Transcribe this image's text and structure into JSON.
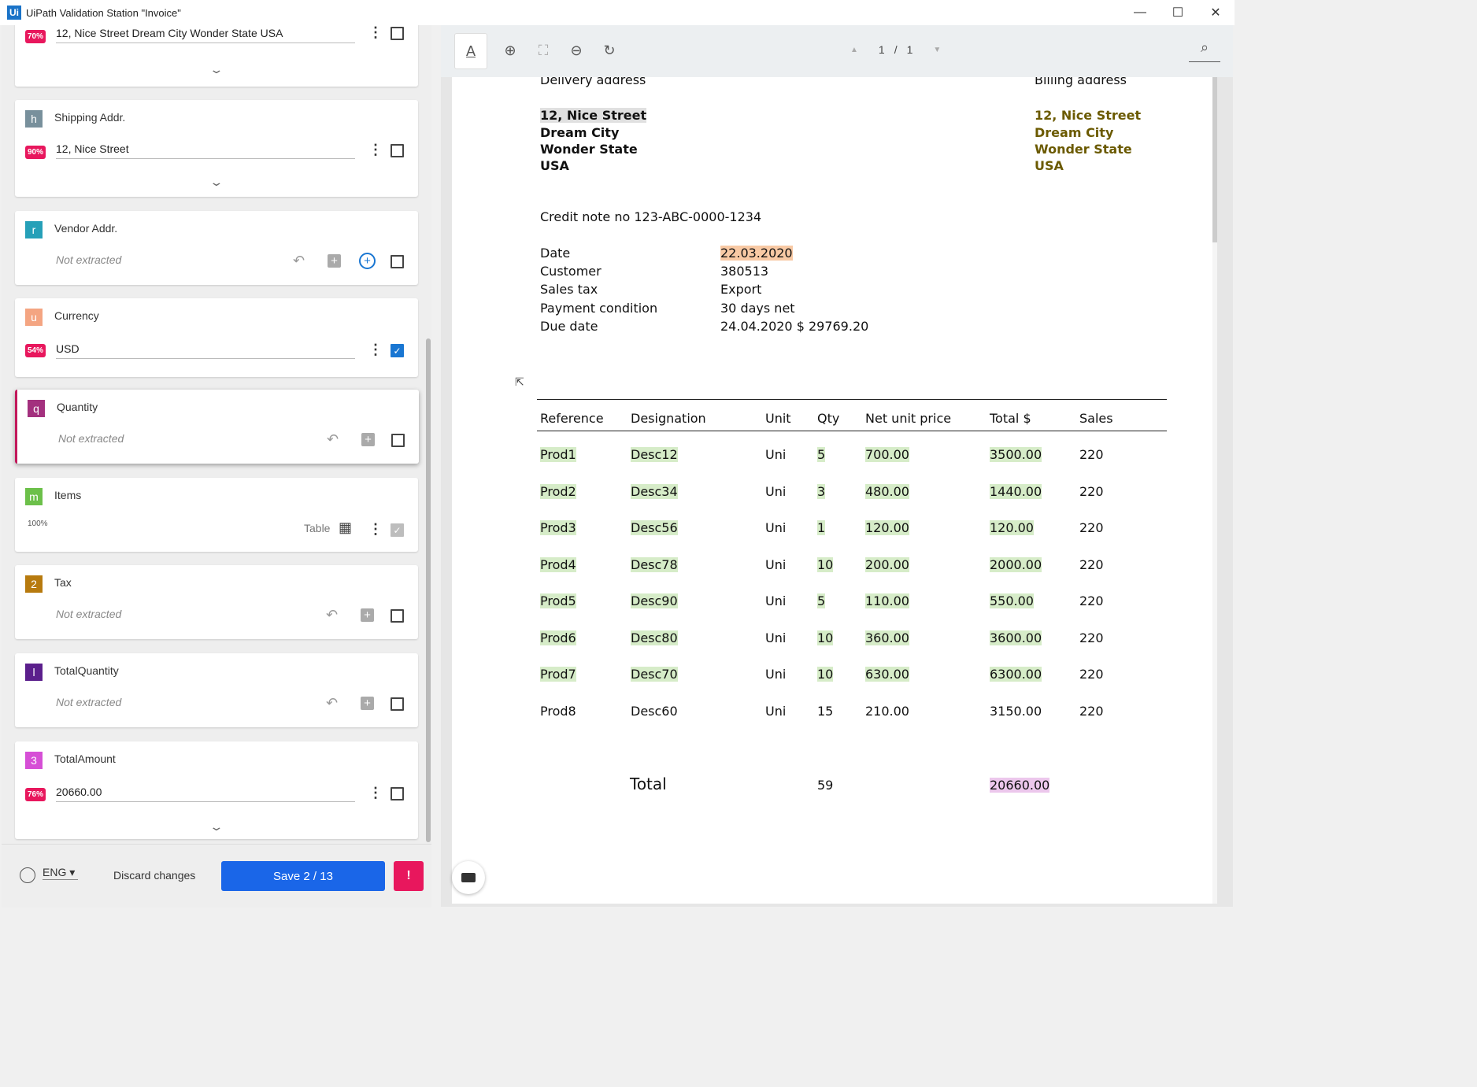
{
  "window": {
    "title": "UiPath Validation Station \"Invoice\"",
    "logo": "Ui",
    "minimize_glyph": "—",
    "maximize_glyph": "☐",
    "close_glyph": "✕"
  },
  "fields": {
    "billing_partial": {
      "confidence": "70%",
      "value": "12, Nice Street Dream City Wonder State USA"
    },
    "shipping": {
      "letter": "h",
      "name": "Shipping Addr.",
      "confidence": "90%",
      "value": "12, Nice Street",
      "color": "#78909c"
    },
    "vendor": {
      "letter": "r",
      "name": "Vendor Addr.",
      "status": "Not extracted",
      "color": "#26a0b8"
    },
    "currency": {
      "letter": "u",
      "name": "Currency",
      "confidence": "54%",
      "value": "USD",
      "color": "#f4a582"
    },
    "quantity": {
      "letter": "q",
      "name": "Quantity",
      "status": "Not extracted",
      "color": "#a3307e"
    },
    "items": {
      "letter": "m",
      "name": "Items",
      "confidence": "100%",
      "type_label": "Table",
      "color": "#6cc04a"
    },
    "tax": {
      "letter": "2",
      "name": "Tax",
      "status": "Not extracted",
      "color": "#b77a0e"
    },
    "total_quantity": {
      "letter": "l",
      "name": "TotalQuantity",
      "status": "Not extracted",
      "color": "#5b1f8c"
    },
    "total_amount": {
      "letter": "3",
      "name": "TotalAmount",
      "confidence": "76%",
      "value": "20660.00",
      "color": "#d64fd6"
    }
  },
  "footer": {
    "language": "ENG",
    "discard_label": "Discard changes",
    "save_label": "Save 2 / 13",
    "alert_label": "!"
  },
  "viewer": {
    "page_current": "1",
    "page_sep": "/",
    "page_total": "1",
    "tool_icons": [
      "text-select-icon",
      "zoom-in-icon",
      "fit-page-icon",
      "zoom-out-icon",
      "rotate-icon"
    ]
  },
  "document": {
    "delivery_heading": "Delivery address",
    "billing_heading": "Billing address",
    "delivery_lines": [
      "12, Nice Street",
      "Dream City",
      "Wonder State",
      "USA"
    ],
    "billing_lines": [
      "12, Nice Street",
      "Dream City",
      "Wonder State",
      "USA"
    ],
    "credit_note": "Credit note no 123-ABC-0000-1234",
    "meta_labels": [
      "Date",
      "Customer",
      "Sales tax",
      "Payment condition",
      "Due date"
    ],
    "meta_values": [
      "22.03.2020",
      "380513",
      "Export",
      "30 days net",
      "24.04.2020 $ 29769.20"
    ],
    "table_headers": [
      "Reference",
      "Designation",
      "Unit",
      "Qty",
      "Net unit price",
      "Total $",
      "Sales"
    ],
    "table_rows": [
      [
        "Prod1",
        "Desc12",
        "Uni",
        "5",
        "700.00",
        "3500.00",
        "220"
      ],
      [
        "Prod2",
        "Desc34",
        "Uni",
        "3",
        "480.00",
        "1440.00",
        "220"
      ],
      [
        "Prod3",
        "Desc56",
        "Uni",
        "1",
        "120.00",
        "120.00",
        "220"
      ],
      [
        "Prod4",
        "Desc78",
        "Uni",
        "10",
        "200.00",
        "2000.00",
        "220"
      ],
      [
        "Prod5",
        "Desc90",
        "Uni",
        "5",
        "110.00",
        "550.00",
        "220"
      ],
      [
        "Prod6",
        "Desc80",
        "Uni",
        "10",
        "360.00",
        "3600.00",
        "220"
      ],
      [
        "Prod7",
        "Desc70",
        "Uni",
        "10",
        "630.00",
        "6300.00",
        "220"
      ],
      [
        "Prod8",
        "Desc60",
        "Uni",
        "15",
        "210.00",
        "3150.00",
        "220"
      ]
    ],
    "total_label": "Total",
    "total_qty": "59",
    "total_amount": "20660.00"
  }
}
